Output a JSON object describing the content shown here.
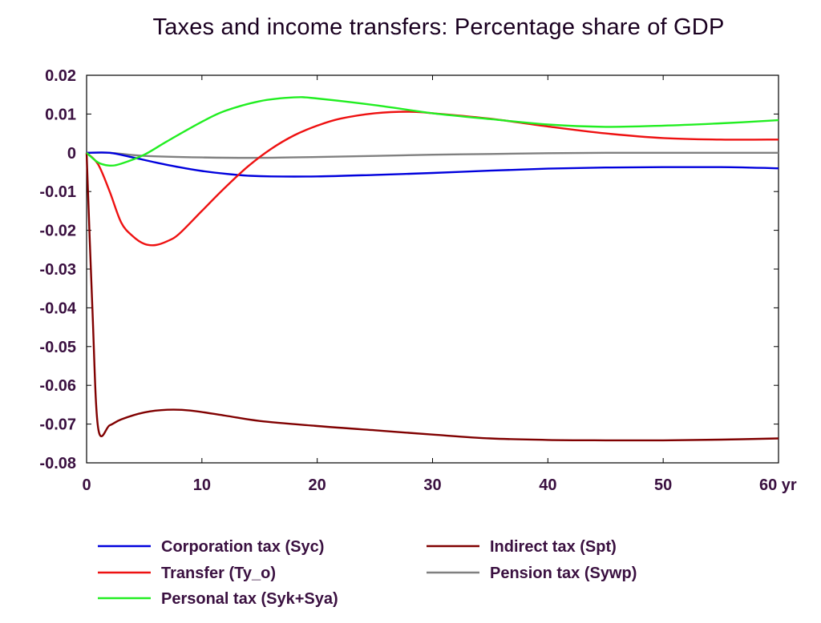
{
  "chart_data": {
    "type": "line",
    "title": "Taxes and income transfers: Percentage share of GDP",
    "xlabel": "",
    "ylabel": "",
    "xlim": [
      0,
      60
    ],
    "ylim": [
      -0.08,
      0.02
    ],
    "x_ticks": [
      0,
      10,
      20,
      30,
      40,
      50,
      60
    ],
    "x_tick_labels": [
      "0",
      "10",
      "20",
      "30",
      "40",
      "50",
      "60 yr"
    ],
    "y_ticks": [
      0.02,
      0.01,
      0,
      -0.01,
      -0.02,
      -0.03,
      -0.04,
      -0.05,
      -0.06,
      -0.07,
      -0.08
    ],
    "y_tick_labels": [
      "0.02",
      "0.01",
      "0",
      "-0.01",
      "-0.02",
      "-0.03",
      "-0.04",
      "-0.05",
      "-0.06",
      "-0.07",
      "-0.08"
    ],
    "grid": false,
    "legend_position": "bottom",
    "series": [
      {
        "name": "Corporation tax (Syc)",
        "color": "#0000dd",
        "points": [
          [
            0,
            0
          ],
          [
            2,
            0
          ],
          [
            4,
            -0.0012
          ],
          [
            6,
            -0.0025
          ],
          [
            8,
            -0.0037
          ],
          [
            10,
            -0.0047
          ],
          [
            12,
            -0.0054
          ],
          [
            14,
            -0.0059
          ],
          [
            16,
            -0.0061
          ],
          [
            20,
            -0.0061
          ],
          [
            25,
            -0.0057
          ],
          [
            30,
            -0.0052
          ],
          [
            35,
            -0.0046
          ],
          [
            40,
            -0.0041
          ],
          [
            45,
            -0.0038
          ],
          [
            50,
            -0.0037
          ],
          [
            55,
            -0.0037
          ],
          [
            60,
            -0.004
          ]
        ]
      },
      {
        "name": "Transfer (Ty_o)",
        "color": "#ee1111",
        "points": [
          [
            0,
            0
          ],
          [
            1,
            -0.003
          ],
          [
            2,
            -0.01
          ],
          [
            3,
            -0.018
          ],
          [
            4,
            -0.0215
          ],
          [
            5,
            -0.0235
          ],
          [
            6,
            -0.0238
          ],
          [
            7,
            -0.0228
          ],
          [
            8,
            -0.021
          ],
          [
            10,
            -0.015
          ],
          [
            12,
            -0.009
          ],
          [
            14,
            -0.0035
          ],
          [
            16,
            0.001
          ],
          [
            18,
            0.0045
          ],
          [
            20,
            0.007
          ],
          [
            22,
            0.0088
          ],
          [
            25,
            0.0102
          ],
          [
            28,
            0.0106
          ],
          [
            30,
            0.0102
          ],
          [
            35,
            0.0088
          ],
          [
            40,
            0.0068
          ],
          [
            45,
            0.005
          ],
          [
            50,
            0.0038
          ],
          [
            55,
            0.0034
          ],
          [
            60,
            0.0034
          ]
        ]
      },
      {
        "name": "Personal tax (Syk+Sya)",
        "color": "#22ee22",
        "points": [
          [
            0,
            0
          ],
          [
            1,
            -0.0025
          ],
          [
            2,
            -0.0033
          ],
          [
            3,
            -0.0028
          ],
          [
            5,
            -0.0005
          ],
          [
            7,
            0.003
          ],
          [
            10,
            0.008
          ],
          [
            12,
            0.0108
          ],
          [
            15,
            0.0133
          ],
          [
            18,
            0.0143
          ],
          [
            20,
            0.014
          ],
          [
            25,
            0.0123
          ],
          [
            30,
            0.0102
          ],
          [
            35,
            0.0087
          ],
          [
            40,
            0.0073
          ],
          [
            45,
            0.0067
          ],
          [
            50,
            0.007
          ],
          [
            55,
            0.0076
          ],
          [
            60,
            0.0084
          ]
        ]
      },
      {
        "name": "Indirect tax (Spt)",
        "color": "#800000",
        "points": [
          [
            0,
            0
          ],
          [
            0.5,
            -0.04
          ],
          [
            1,
            -0.071
          ],
          [
            2,
            -0.0703
          ],
          [
            3,
            -0.0688
          ],
          [
            5,
            -0.067
          ],
          [
            7,
            -0.0663
          ],
          [
            9,
            -0.0665
          ],
          [
            12,
            -0.0678
          ],
          [
            15,
            -0.0692
          ],
          [
            20,
            -0.0705
          ],
          [
            25,
            -0.0716
          ],
          [
            30,
            -0.0727
          ],
          [
            35,
            -0.0737
          ],
          [
            40,
            -0.0741
          ],
          [
            45,
            -0.0742
          ],
          [
            50,
            -0.0742
          ],
          [
            55,
            -0.074
          ],
          [
            60,
            -0.0737
          ]
        ]
      },
      {
        "name": "Pension tax (Sywp)",
        "color": "#808080",
        "points": [
          [
            0,
            0
          ],
          [
            2,
            0
          ],
          [
            5,
            -0.0008
          ],
          [
            10,
            -0.0012
          ],
          [
            15,
            -0.0013
          ],
          [
            20,
            -0.0011
          ],
          [
            25,
            -0.0008
          ],
          [
            30,
            -0.0005
          ],
          [
            35,
            -0.0003
          ],
          [
            40,
            -0.0001
          ],
          [
            45,
            0
          ],
          [
            50,
            0
          ],
          [
            55,
            0
          ],
          [
            60,
            0
          ]
        ]
      }
    ]
  }
}
